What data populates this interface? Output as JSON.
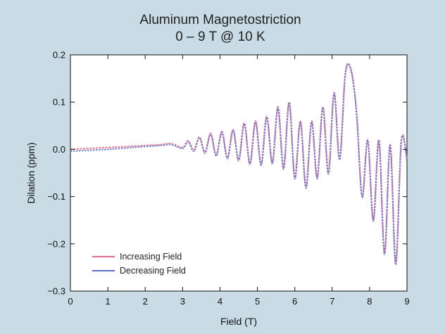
{
  "chart_data": {
    "type": "line",
    "title": "Aluminum Magnetostriction",
    "subtitle": "0 – 9 T @ 10 K",
    "xlabel": "Field (T)",
    "ylabel": "Dilation (ppm)",
    "xlim": [
      0,
      9
    ],
    "ylim": [
      -0.3,
      0.2
    ],
    "xticks": [
      0,
      1,
      2,
      3,
      4,
      5,
      6,
      7,
      8,
      9
    ],
    "yticks": [
      -0.3,
      -0.2,
      -0.1,
      0.0,
      0.1,
      0.2
    ],
    "xtick_labels": [
      "0",
      "1",
      "2",
      "3",
      "4",
      "5",
      "6",
      "7",
      "8",
      "9"
    ],
    "ytick_labels": [
      "−0.3",
      "−0.2",
      "−0.1",
      "0.0",
      "0.1",
      "0.2"
    ],
    "grid": false,
    "legend_position": "bottom-left",
    "series": [
      {
        "name": "Increasing Field",
        "color": "#e0708a",
        "x": [
          0,
          0.5,
          1,
          1.5,
          2,
          2.4,
          2.7,
          3.0,
          3.15,
          3.3,
          3.45,
          3.6,
          3.75,
          3.9,
          4.05,
          4.2,
          4.35,
          4.5,
          4.65,
          4.8,
          4.95,
          5.1,
          5.25,
          5.4,
          5.55,
          5.7,
          5.85,
          6.0,
          6.15,
          6.3,
          6.45,
          6.6,
          6.75,
          6.9,
          7.05,
          7.2,
          7.35,
          7.5,
          7.65,
          7.8,
          7.95,
          8.1,
          8.25,
          8.4,
          8.55,
          8.7,
          8.85,
          9.0
        ],
        "y": [
          0.0,
          0.002,
          0.004,
          0.006,
          0.008,
          0.01,
          0.012,
          0.004,
          0.018,
          -0.002,
          0.026,
          -0.006,
          0.034,
          -0.012,
          0.038,
          -0.018,
          0.042,
          -0.022,
          0.056,
          -0.03,
          0.06,
          -0.032,
          0.07,
          -0.028,
          0.09,
          -0.04,
          0.1,
          -0.06,
          0.06,
          -0.08,
          0.06,
          -0.06,
          0.09,
          -0.05,
          0.12,
          -0.02,
          0.16,
          0.17,
          0.08,
          -0.1,
          0.02,
          -0.15,
          0.02,
          -0.22,
          0.01,
          -0.24,
          0.02,
          -0.02
        ]
      },
      {
        "name": "Decreasing Field",
        "color": "#5a6cc4",
        "x": [
          0,
          0.5,
          1,
          1.5,
          2,
          2.4,
          2.7,
          3.0,
          3.15,
          3.3,
          3.45,
          3.6,
          3.75,
          3.9,
          4.05,
          4.2,
          4.35,
          4.5,
          4.65,
          4.8,
          4.95,
          5.1,
          5.25,
          5.4,
          5.55,
          5.7,
          5.85,
          6.0,
          6.15,
          6.3,
          6.45,
          6.6,
          6.75,
          6.9,
          7.05,
          7.2,
          7.35,
          7.5,
          7.65,
          7.8,
          7.95,
          8.1,
          8.25,
          8.4,
          8.55,
          8.7,
          8.85,
          9.0
        ],
        "y": [
          -0.004,
          -0.002,
          0.0,
          0.003,
          0.006,
          0.008,
          0.01,
          0.002,
          0.016,
          -0.004,
          0.024,
          -0.008,
          0.032,
          -0.014,
          0.036,
          -0.02,
          0.04,
          -0.024,
          0.054,
          -0.032,
          0.058,
          -0.034,
          0.068,
          -0.03,
          0.088,
          -0.042,
          0.098,
          -0.062,
          0.058,
          -0.082,
          0.058,
          -0.062,
          0.088,
          -0.052,
          0.118,
          -0.022,
          0.158,
          0.168,
          0.078,
          -0.102,
          0.018,
          -0.152,
          0.018,
          -0.222,
          0.008,
          -0.245,
          0.018,
          -0.022
        ]
      }
    ]
  }
}
